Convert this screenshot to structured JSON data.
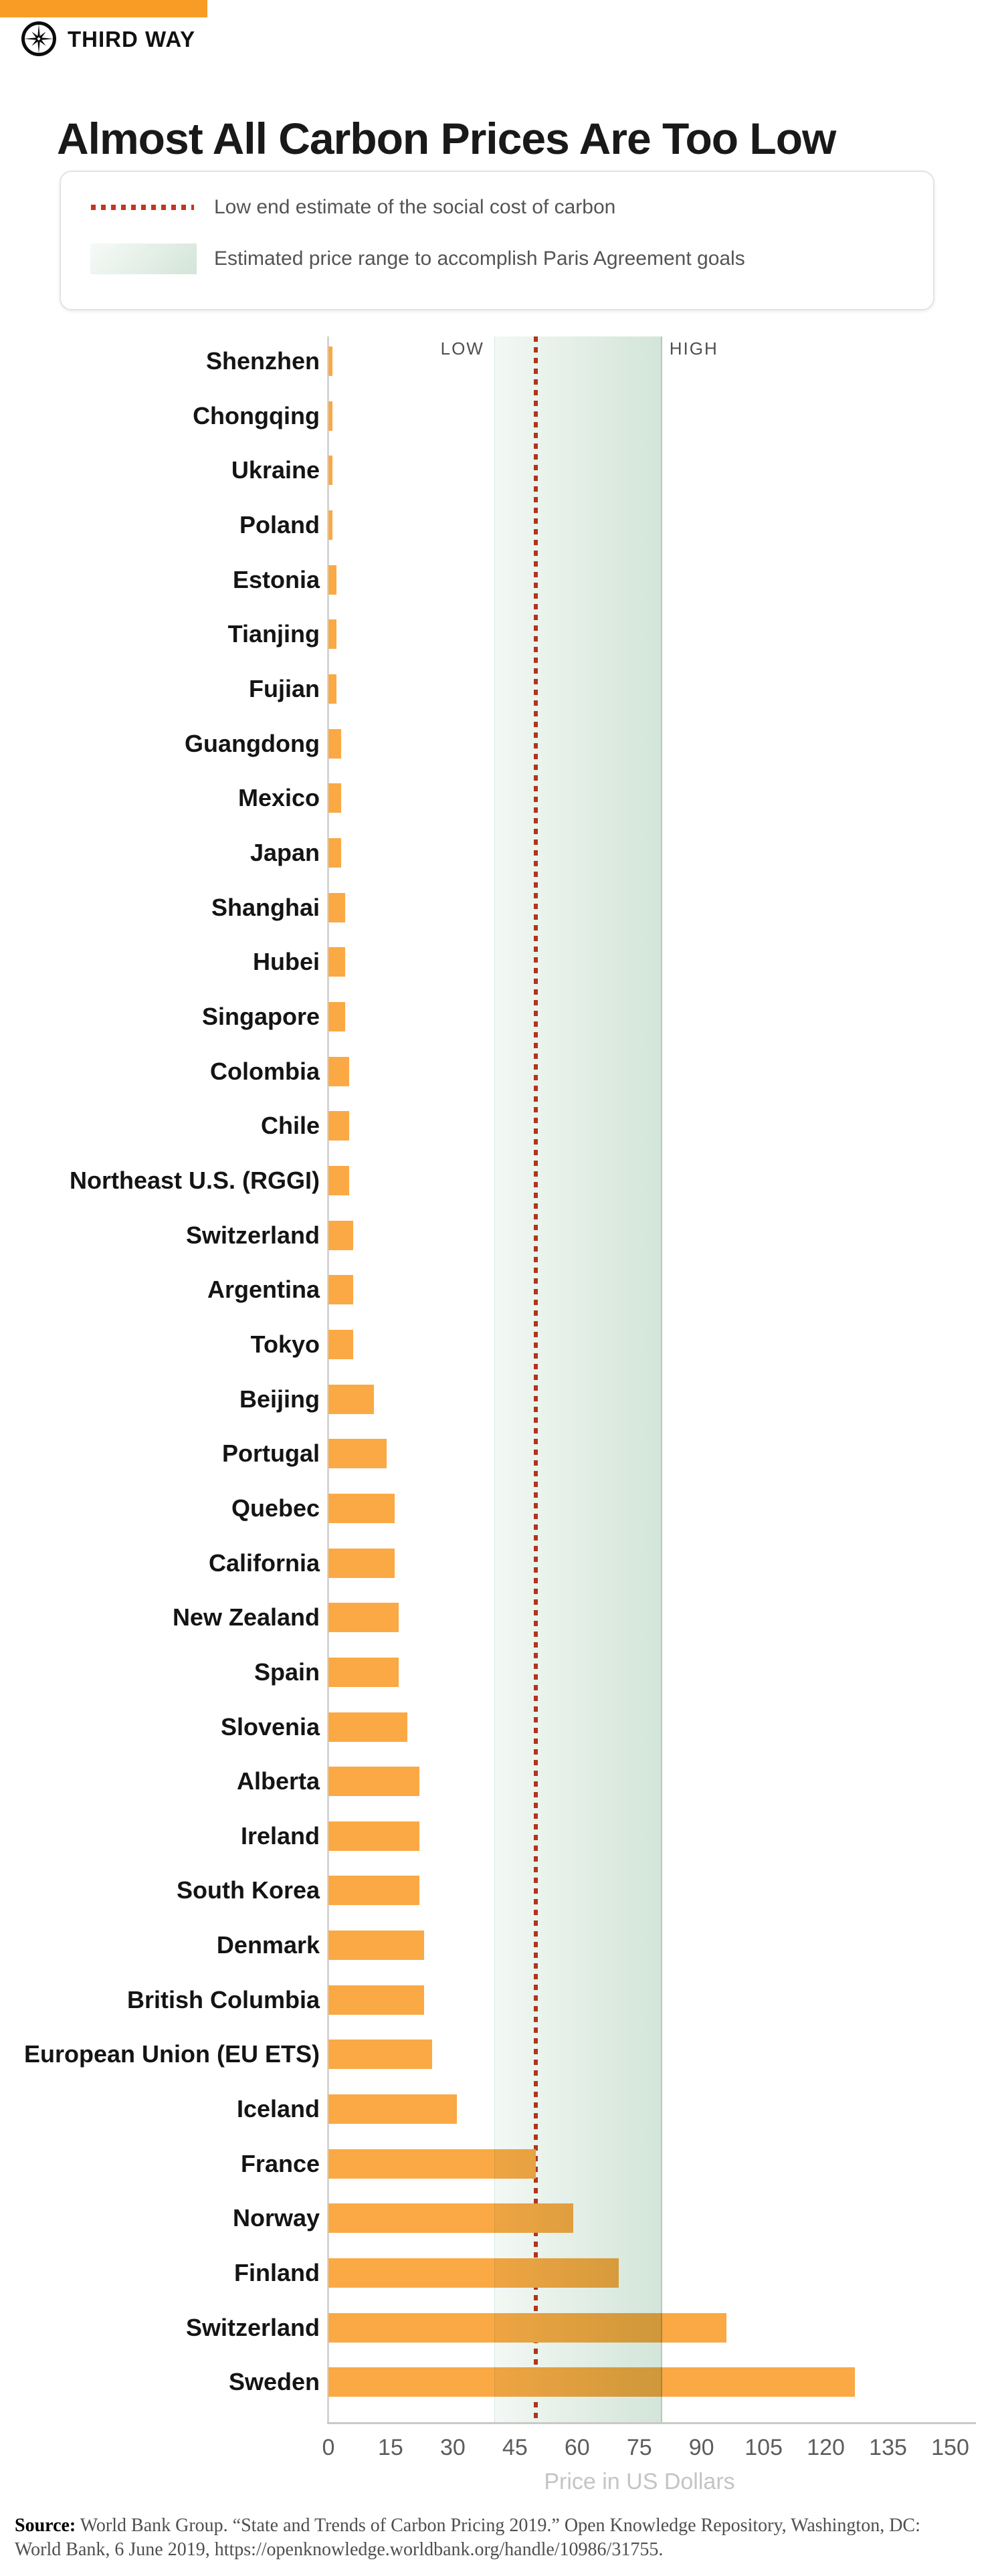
{
  "brand": {
    "name": "THIRD WAY",
    "logo_icon": "compass-star-icon"
  },
  "title": "Almost All Carbon Prices Are Too Low",
  "legend": {
    "items": [
      {
        "swatch": "dotted-red-line",
        "label": "Low end estimate of the social cost of carbon"
      },
      {
        "swatch": "green-gradient-band",
        "label": "Estimated price range to accomplish Paris Agreement goals"
      }
    ]
  },
  "chart_data": {
    "type": "bar",
    "orientation": "horizontal",
    "title": "Almost All Carbon Prices Are Too Low",
    "categories": [
      "Shenzhen",
      "Chongqing",
      "Ukraine",
      "Poland",
      "Estonia",
      "Tianjing",
      "Fujian",
      "Guangdong",
      "Mexico",
      "Japan",
      "Shanghai",
      "Hubei",
      "Singapore",
      "Colombia",
      "Chile",
      "Northeast U.S. (RGGI)",
      "Switzerland",
      "Argentina",
      "Tokyo",
      "Beijing",
      "Portugal",
      "Quebec",
      "California",
      "New Zealand",
      "Spain",
      "Slovenia",
      "Alberta",
      "Ireland",
      "South Korea",
      "Denmark",
      "British Columbia",
      "European Union (EU ETS)",
      "Iceland",
      "France",
      "Norway",
      "Finland",
      "Switzerland",
      "Sweden"
    ],
    "values": [
      1,
      1,
      1,
      1,
      2,
      2,
      2,
      3,
      3,
      3,
      4,
      4,
      4,
      5,
      5,
      5,
      6,
      6,
      6,
      11,
      14,
      16,
      16,
      17,
      17,
      19,
      22,
      22,
      22,
      23,
      23,
      25,
      31,
      50,
      59,
      70,
      96,
      127
    ],
    "xlabel": "Price in US Dollars",
    "xlim": [
      0,
      150
    ],
    "xticks": [
      0,
      15,
      30,
      45,
      60,
      75,
      90,
      105,
      120,
      135,
      150
    ],
    "grid": false,
    "annotations": {
      "social_cost_line": {
        "value": 50,
        "style": "dotted"
      },
      "paris_range": {
        "low": 40,
        "high": 80,
        "low_label": "LOW",
        "high_label": "HIGH"
      }
    }
  },
  "colors": {
    "bar": "#FAA945",
    "banner": "#F89C26",
    "scc_line": "#C0371F",
    "band_from": "#F3F8F4",
    "band_to": "#D3E5D9"
  },
  "source": {
    "prefix": "Source:",
    "text": " World Bank Group. “State and Trends of Carbon Pricing 2019.” Open Knowledge Repository, Washington, DC: World Bank, 6 June 2019, https://openknowledge.worldbank.org/handle/10986/31755."
  }
}
